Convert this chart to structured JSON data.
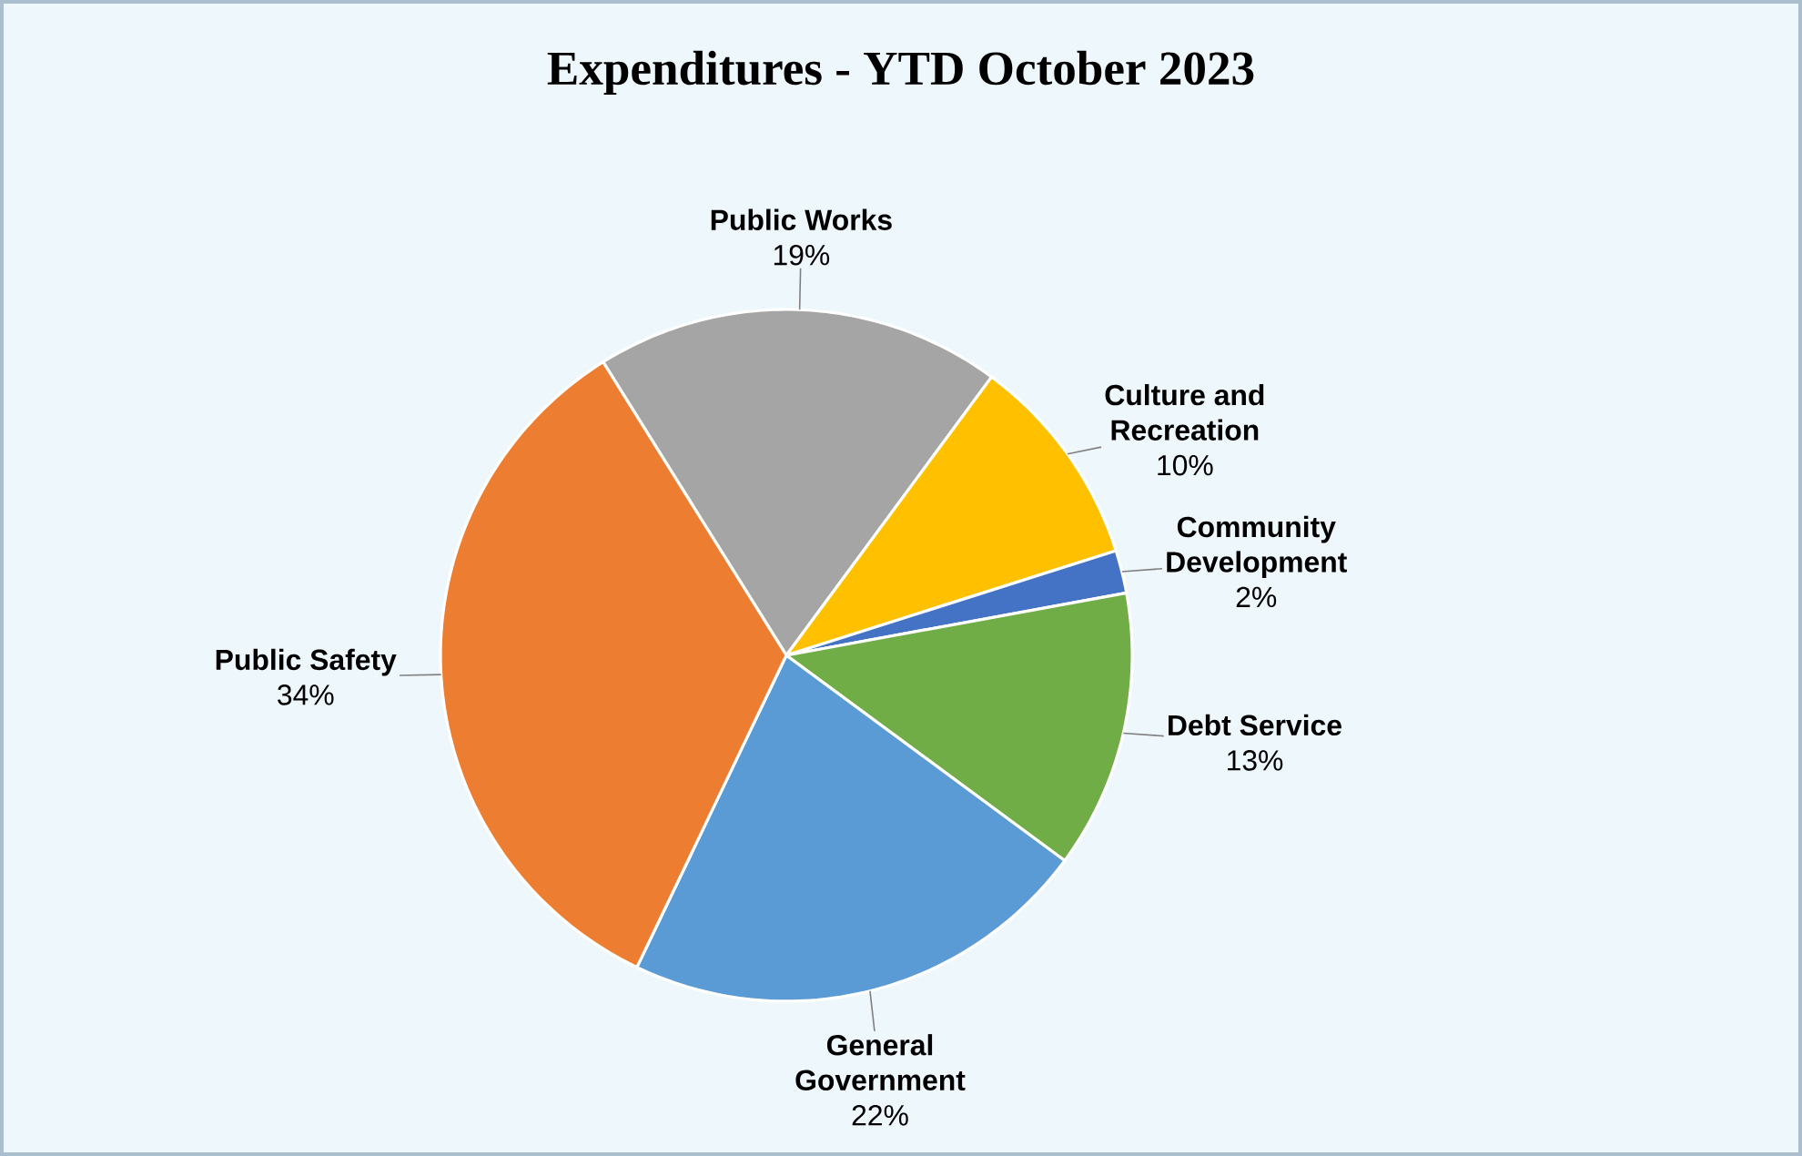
{
  "chart_data": {
    "type": "pie",
    "title": "Expenditures - YTD October 2023",
    "categories": [
      "Public Works",
      "Culture and Recreation",
      "Community Development",
      "Debt Service",
      "General Government",
      "Public Safety"
    ],
    "values": [
      19,
      10,
      2,
      13,
      22,
      34
    ],
    "value_labels": [
      "19%",
      "10%",
      "2%",
      "13%",
      "22%",
      "34%"
    ],
    "colors": [
      "#a5a5a5",
      "#ffc000",
      "#4472c4",
      "#70ad47",
      "#5b9bd5",
      "#ed7d31"
    ]
  }
}
